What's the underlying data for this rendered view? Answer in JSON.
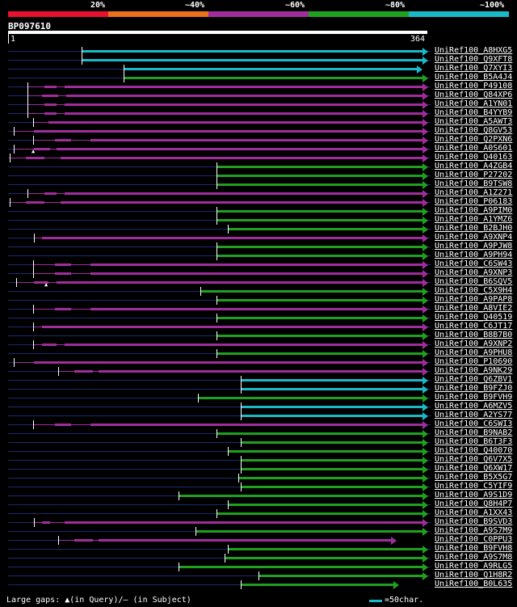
{
  "header": {
    "percent_labels": [
      "20%",
      "~40%",
      "~60%",
      "~80%",
      "~100%"
    ],
    "color_bands": [
      "#e8112e",
      "#e8711a",
      "#a02d9c",
      "#1fa01f",
      "#1ab9c8"
    ]
  },
  "query": {
    "id": "BP097610",
    "start_label": "1",
    "end_label": "364"
  },
  "colors": {
    "cyan": "#1ab9c8",
    "green": "#1fa01f",
    "purple": "#a02d9c",
    "query_line": "#1a2a70"
  },
  "hits": [
    {
      "label": "UniRef100_A8HXG5",
      "color": "cyan"
    },
    {
      "label": "UniRef100_Q9XFT8",
      "color": "cyan"
    },
    {
      "label": "UniRef100_Q7XYI3",
      "color": "cyan"
    },
    {
      "label": "UniRef100_B5A4J4",
      "color": "green"
    },
    {
      "label": "UniRef100_P49108",
      "color": "purple"
    },
    {
      "label": "UniRef100_Q84XP6",
      "color": "purple"
    },
    {
      "label": "UniRef100_A1YN01",
      "color": "purple"
    },
    {
      "label": "UniRef100_B4YYB9",
      "color": "purple"
    },
    {
      "label": "UniRef100_A5AWT3",
      "color": "purple"
    },
    {
      "label": "UniRef100_Q8GV53",
      "color": "purple"
    },
    {
      "label": "UniRef100_Q2PXN6",
      "color": "purple"
    },
    {
      "label": "UniRef100_A0S601",
      "color": "purple"
    },
    {
      "label": "UniRef100_Q40163",
      "color": "purple"
    },
    {
      "label": "UniRef100_A4ZGB4",
      "color": "green"
    },
    {
      "label": "UniRef100_P27202",
      "color": "green"
    },
    {
      "label": "UniRef100_B9TSW8",
      "color": "green"
    },
    {
      "label": "UniRef100_A1Z271",
      "color": "purple"
    },
    {
      "label": "UniRef100_P06183",
      "color": "purple"
    },
    {
      "label": "UniRef100_A9PIM0",
      "color": "green"
    },
    {
      "label": "UniRef100_A1YMZ6",
      "color": "green"
    },
    {
      "label": "UniRef100_B2BJH0",
      "color": "green"
    },
    {
      "label": "UniRef100_A9XNP4",
      "color": "purple"
    },
    {
      "label": "UniRef100_A9PJW8",
      "color": "green"
    },
    {
      "label": "UniRef100_A9PH94",
      "color": "green"
    },
    {
      "label": "UniRef100_C6SW43",
      "color": "purple"
    },
    {
      "label": "UniRef100_A9XNP3",
      "color": "purple"
    },
    {
      "label": "UniRef100_B6SQV5",
      "color": "purple"
    },
    {
      "label": "UniRef100_C5X9H4",
      "color": "green"
    },
    {
      "label": "UniRef100_A9PAP8",
      "color": "green"
    },
    {
      "label": "UniRef100_A8VIE2",
      "color": "purple"
    },
    {
      "label": "UniRef100_Q40519",
      "color": "green"
    },
    {
      "label": "UniRef100_C6JT17",
      "color": "purple"
    },
    {
      "label": "UniRef100_B8B7B0",
      "color": "green"
    },
    {
      "label": "UniRef100_A9XNP2",
      "color": "purple"
    },
    {
      "label": "UniRef100_A9PHU8",
      "color": "green"
    },
    {
      "label": "UniRef100_P10690",
      "color": "purple"
    },
    {
      "label": "UniRef100_A9NK29",
      "color": "purple"
    },
    {
      "label": "UniRef100_Q6ZBV1",
      "color": "cyan"
    },
    {
      "label": "UniRef100_B9FZJ0",
      "color": "cyan"
    },
    {
      "label": "UniRef100_B9FVH9",
      "color": "green"
    },
    {
      "label": "UniRef100_A6MZV5",
      "color": "cyan"
    },
    {
      "label": "UniRef100_A2YS77",
      "color": "cyan"
    },
    {
      "label": "UniRef100_C6SWI3",
      "color": "purple"
    },
    {
      "label": "UniRef100_B9NAB2",
      "color": "green"
    },
    {
      "label": "UniRef100_B6T3F3",
      "color": "green"
    },
    {
      "label": "UniRef100_Q40070",
      "color": "green"
    },
    {
      "label": "UniRef100_Q6V7X5",
      "color": "green"
    },
    {
      "label": "UniRef100_Q6XW17",
      "color": "green"
    },
    {
      "label": "UniRef100_B5X5G7",
      "color": "green"
    },
    {
      "label": "UniRef100_C5YIF9",
      "color": "green"
    },
    {
      "label": "UniRef100_A9S1D9",
      "color": "green"
    },
    {
      "label": "UniRef100_Q8H4P7",
      "color": "green"
    },
    {
      "label": "UniRef100_A1XX43",
      "color": "green"
    },
    {
      "label": "UniRef100_B9SVD3",
      "color": "purple"
    },
    {
      "label": "UniRef100_A9S7M9",
      "color": "green"
    },
    {
      "label": "UniRef100_C0PPU3",
      "color": "purple"
    },
    {
      "label": "UniRef100_B9FVH8",
      "color": "green"
    },
    {
      "label": "UniRef100_A9S7M8",
      "color": "green"
    },
    {
      "label": "UniRef100_A9RLG5",
      "color": "green"
    },
    {
      "label": "UniRef100_Q1H8R2",
      "color": "green"
    },
    {
      "label": "UniRef100_B0L635",
      "color": "green"
    }
  ],
  "footer": {
    "legend_text": "Large gaps: ▲(in Query)/– (in Subject)",
    "scale_text": "=50char."
  }
}
